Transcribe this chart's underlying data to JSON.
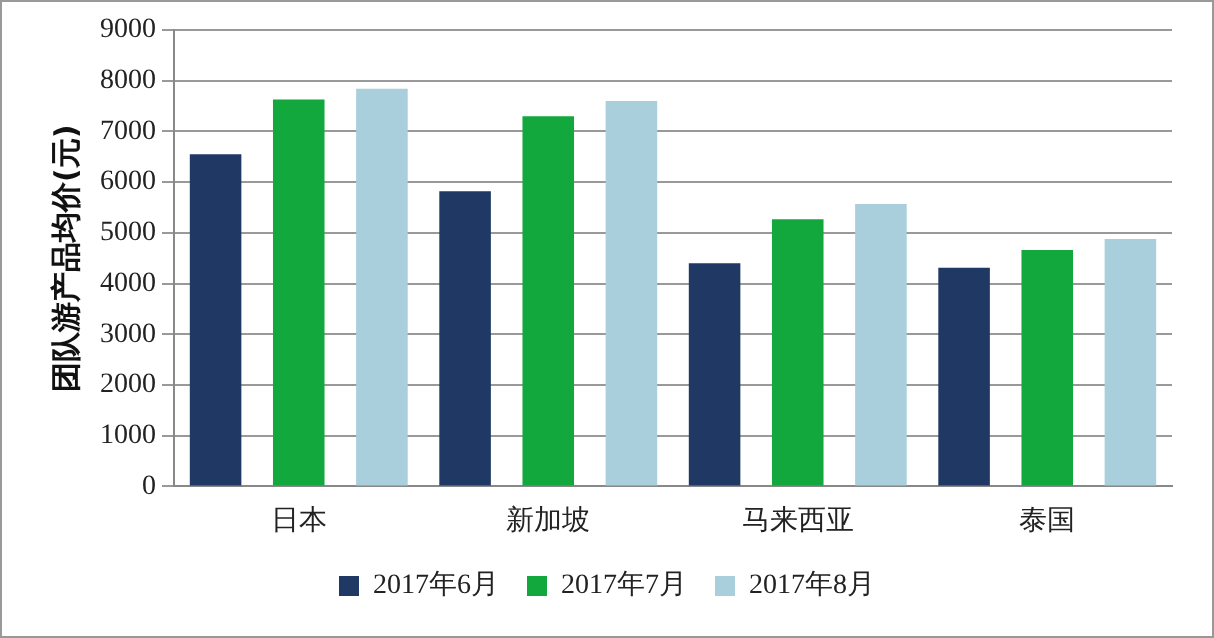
{
  "chart_data": {
    "type": "bar",
    "ylabel": "团队游产品均价(元)",
    "categories": [
      "日本",
      "新加坡",
      "马来西亚",
      "泰国"
    ],
    "series": [
      {
        "name": "2017年6月",
        "color": "#1f3864",
        "values": [
          6550,
          5820,
          4400,
          4310
        ]
      },
      {
        "name": "2017年7月",
        "color": "#12a83d",
        "values": [
          7630,
          7300,
          5270,
          4660
        ]
      },
      {
        "name": "2017年8月",
        "color": "#a9cfdc",
        "values": [
          7840,
          7600,
          5570,
          4880
        ]
      }
    ],
    "ylim": [
      0,
      9000
    ],
    "yticks": [
      0,
      1000,
      2000,
      3000,
      4000,
      5000,
      6000,
      7000,
      8000,
      9000
    ],
    "grid": "y",
    "legend": "bottom"
  }
}
